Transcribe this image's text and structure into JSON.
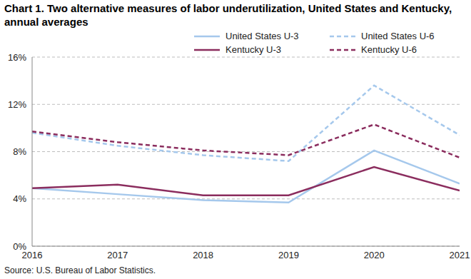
{
  "chart_data": {
    "type": "line",
    "title": "Chart 1. Two alternative measures of labor underutilization, United States and Kentucky, annual averages",
    "source": "Source: U.S. Bureau of Labor Statistics.",
    "x": [
      2016,
      2017,
      2018,
      2019,
      2020,
      2021
    ],
    "xlim": [
      2016,
      2021
    ],
    "xticks": [
      2016,
      2017,
      2018,
      2019,
      2020,
      2021
    ],
    "ylim": [
      0,
      16
    ],
    "yticks": [
      {
        "value": 0,
        "label": "0%"
      },
      {
        "value": 4,
        "label": "4%"
      },
      {
        "value": 8,
        "label": "8%"
      },
      {
        "value": 12,
        "label": "12%"
      },
      {
        "value": 16,
        "label": "16%"
      }
    ],
    "grid": true,
    "legend": "top-right",
    "series": [
      {
        "name": "United States U-3",
        "color": "#a5c8ec",
        "line_style": "solid",
        "values": [
          4.9,
          4.4,
          3.9,
          3.7,
          8.1,
          5.3
        ]
      },
      {
        "name": "United States U-6",
        "color": "#a5c8ec",
        "line_style": "dashed",
        "values": [
          9.6,
          8.5,
          7.7,
          7.2,
          13.6,
          9.4
        ]
      },
      {
        "name": "Kentucky U-3",
        "color": "#8b2d5e",
        "line_style": "solid",
        "values": [
          4.9,
          5.2,
          4.3,
          4.3,
          6.7,
          4.7
        ]
      },
      {
        "name": "Kentucky U-6",
        "color": "#8b2d5e",
        "line_style": "dashed",
        "values": [
          9.7,
          8.8,
          8.1,
          7.7,
          10.3,
          7.5
        ]
      }
    ]
  }
}
